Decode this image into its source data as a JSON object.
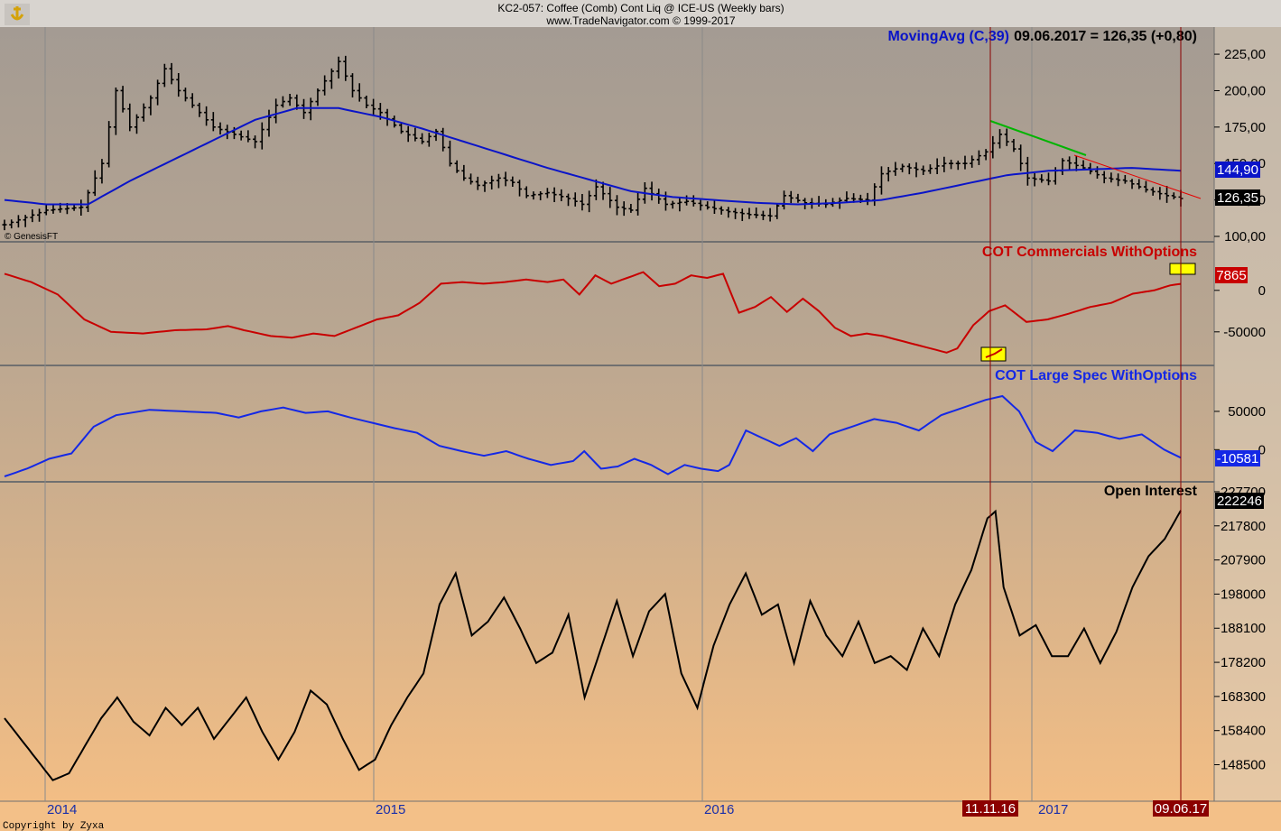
{
  "header": {
    "symbol_line": "KC2-057:  Coffee (Comb) Cont Liq @ ICE-US  (Weekly bars)",
    "source_line": "www.TradeNavigator.com © 1999-2017"
  },
  "footer": {
    "copyright": "Copyright by Zyxa",
    "watermark": "© GenesisFT"
  },
  "colors": {
    "price_bars": "#000000",
    "moving_avg": "#0a14c8",
    "commercials": "#c80000",
    "large_spec": "#1428e6",
    "open_interest": "#000000",
    "event_line": "#8b0000",
    "trend_up": "#00b400",
    "trend_down": "#e60000",
    "marker_fill": "#ffff00"
  },
  "chart_data": [
    {
      "type": "candlestick",
      "panel": "price",
      "indicator_label": "MovingAvg (C,39)",
      "readout": "09.06.2017 = 126,35 (+0,80)",
      "last_close_label": "126,35",
      "moving_avg_label": "144,90",
      "ylim": [
        100,
        230
      ],
      "yticks": [
        "100,00",
        "125,00",
        "150,00",
        "175,00",
        "200,00",
        "225,00"
      ],
      "close_anchors": [
        [
          0,
          108
        ],
        [
          6,
          118
        ],
        [
          11,
          120
        ],
        [
          14,
          150
        ],
        [
          16,
          200
        ],
        [
          18,
          175
        ],
        [
          21,
          195
        ],
        [
          23,
          215
        ],
        [
          25,
          200
        ],
        [
          28,
          185
        ],
        [
          30,
          175
        ],
        [
          33,
          170
        ],
        [
          36,
          165
        ],
        [
          39,
          190
        ],
        [
          41,
          195
        ],
        [
          43,
          185
        ],
        [
          45,
          200
        ],
        [
          48,
          220
        ],
        [
          50,
          200
        ],
        [
          52,
          190
        ],
        [
          54,
          185
        ],
        [
          57,
          172
        ],
        [
          60,
          165
        ],
        [
          62,
          172
        ],
        [
          64,
          150
        ],
        [
          66,
          140
        ],
        [
          68,
          135
        ],
        [
          71,
          140
        ],
        [
          73,
          137
        ],
        [
          75,
          128
        ],
        [
          78,
          130
        ],
        [
          81,
          126
        ],
        [
          83,
          122
        ],
        [
          85,
          134
        ],
        [
          88,
          120
        ],
        [
          90,
          118
        ],
        [
          92,
          133
        ],
        [
          95,
          122
        ],
        [
          98,
          124
        ],
        [
          101,
          120
        ],
        [
          104,
          117
        ],
        [
          107,
          115
        ],
        [
          110,
          114
        ],
        [
          112,
          128
        ],
        [
          115,
          123
        ],
        [
          118,
          122
        ],
        [
          121,
          126
        ],
        [
          124,
          125
        ],
        [
          126,
          143
        ],
        [
          129,
          148
        ],
        [
          132,
          145
        ],
        [
          135,
          150
        ],
        [
          138,
          150
        ],
        [
          141,
          158
        ],
        [
          143,
          170
        ],
        [
          145,
          160
        ],
        [
          147,
          140
        ],
        [
          150,
          138
        ],
        [
          152,
          152
        ],
        [
          155,
          147
        ],
        [
          158,
          140
        ],
        [
          161,
          138
        ],
        [
          164,
          132
        ],
        [
          167,
          128
        ],
        [
          169,
          126
        ]
      ],
      "ma_anchors": [
        [
          0,
          125
        ],
        [
          6,
          122
        ],
        [
          12,
          122
        ],
        [
          18,
          138
        ],
        [
          24,
          152
        ],
        [
          30,
          166
        ],
        [
          36,
          180
        ],
        [
          42,
          188
        ],
        [
          48,
          188
        ],
        [
          54,
          182
        ],
        [
          60,
          174
        ],
        [
          66,
          165
        ],
        [
          72,
          156
        ],
        [
          78,
          147
        ],
        [
          84,
          139
        ],
        [
          90,
          131
        ],
        [
          96,
          127
        ],
        [
          102,
          125
        ],
        [
          108,
          123
        ],
        [
          114,
          122
        ],
        [
          120,
          123
        ],
        [
          126,
          125
        ],
        [
          132,
          130
        ],
        [
          138,
          136
        ],
        [
          144,
          142
        ],
        [
          150,
          145
        ],
        [
          156,
          146
        ],
        [
          162,
          147
        ],
        [
          169,
          145
        ]
      ]
    },
    {
      "type": "line",
      "panel": "commercials",
      "series": [
        {
          "name": "COT Commercials WithOptions"
        }
      ],
      "last_value_label": "7865",
      "ylim": [
        -85000,
        40000
      ],
      "yticks": [
        "-50000",
        "0"
      ],
      "anchors": [
        [
          0,
          20000
        ],
        [
          5,
          10000
        ],
        [
          10,
          -5000
        ],
        [
          15,
          -35000
        ],
        [
          20,
          -50000
        ],
        [
          26,
          -52000
        ],
        [
          32,
          -48000
        ],
        [
          38,
          -47000
        ],
        [
          42,
          -43000
        ],
        [
          45,
          -48000
        ],
        [
          50,
          -55000
        ],
        [
          54,
          -57000
        ],
        [
          58,
          -52000
        ],
        [
          62,
          -55000
        ],
        [
          66,
          -45000
        ],
        [
          70,
          -35000
        ],
        [
          74,
          -30000
        ],
        [
          78,
          -15000
        ],
        [
          82,
          8000
        ],
        [
          86,
          10000
        ],
        [
          90,
          8000
        ],
        [
          94,
          10000
        ],
        [
          98,
          13000
        ],
        [
          102,
          10000
        ],
        [
          105,
          13000
        ],
        [
          108,
          -5000
        ],
        [
          111,
          18000
        ],
        [
          114,
          8000
        ],
        [
          117,
          15000
        ],
        [
          120,
          22000
        ],
        [
          123,
          5000
        ],
        [
          126,
          8000
        ],
        [
          129,
          18000
        ],
        [
          132,
          15000
        ],
        [
          135,
          20000
        ],
        [
          138,
          -27000
        ],
        [
          141,
          -20000
        ],
        [
          144,
          -8000
        ],
        [
          147,
          -26000
        ],
        [
          150,
          -10000
        ],
        [
          153,
          -25000
        ],
        [
          156,
          -45000
        ],
        [
          159,
          -55000
        ],
        [
          162,
          -52000
        ],
        [
          165,
          -55000
        ],
        [
          168,
          -60000
        ],
        [
          171,
          -65000
        ],
        [
          174,
          -70000
        ],
        [
          177,
          -75000
        ],
        [
          179,
          -70000
        ],
        [
          182,
          -42000
        ],
        [
          185,
          -25000
        ],
        [
          188,
          -18000
        ],
        [
          192,
          -38000
        ],
        [
          196,
          -35000
        ],
        [
          200,
          -28000
        ],
        [
          204,
          -20000
        ],
        [
          208,
          -15000
        ],
        [
          212,
          -4000
        ],
        [
          216,
          0
        ],
        [
          219,
          6000
        ],
        [
          221,
          7865
        ]
      ]
    },
    {
      "type": "line",
      "panel": "large_spec",
      "series": [
        {
          "name": "COT Large Spec WithOptions"
        }
      ],
      "last_value_label": "-10581",
      "ylim": [
        -35000,
        90000
      ],
      "yticks": [
        "0",
        "50000"
      ],
      "anchors": [
        [
          0,
          -35000
        ],
        [
          4,
          -25000
        ],
        [
          8,
          -12000
        ],
        [
          12,
          -5000
        ],
        [
          16,
          30000
        ],
        [
          20,
          45000
        ],
        [
          26,
          52000
        ],
        [
          32,
          50000
        ],
        [
          38,
          48000
        ],
        [
          42,
          42000
        ],
        [
          46,
          50000
        ],
        [
          50,
          55000
        ],
        [
          54,
          48000
        ],
        [
          58,
          50000
        ],
        [
          62,
          42000
        ],
        [
          66,
          35000
        ],
        [
          70,
          28000
        ],
        [
          74,
          22000
        ],
        [
          78,
          5000
        ],
        [
          82,
          -2000
        ],
        [
          86,
          -8000
        ],
        [
          90,
          -2000
        ],
        [
          94,
          -12000
        ],
        [
          98,
          -20000
        ],
        [
          102,
          -15000
        ],
        [
          104,
          -2000
        ],
        [
          107,
          -25000
        ],
        [
          110,
          -22000
        ],
        [
          113,
          -12000
        ],
        [
          116,
          -20000
        ],
        [
          119,
          -32000
        ],
        [
          122,
          -20000
        ],
        [
          125,
          -25000
        ],
        [
          128,
          -28000
        ],
        [
          130,
          -20000
        ],
        [
          133,
          25000
        ],
        [
          136,
          15000
        ],
        [
          139,
          5000
        ],
        [
          142,
          15000
        ],
        [
          145,
          -2000
        ],
        [
          148,
          20000
        ],
        [
          152,
          30000
        ],
        [
          156,
          40000
        ],
        [
          160,
          35000
        ],
        [
          164,
          25000
        ],
        [
          168,
          45000
        ],
        [
          172,
          55000
        ],
        [
          176,
          65000
        ],
        [
          179,
          70000
        ],
        [
          182,
          50000
        ],
        [
          185,
          10000
        ],
        [
          188,
          -2000
        ],
        [
          192,
          25000
        ],
        [
          196,
          22000
        ],
        [
          200,
          14000
        ],
        [
          204,
          20000
        ],
        [
          208,
          0
        ],
        [
          211,
          -10581
        ]
      ]
    },
    {
      "type": "line",
      "panel": "open_interest",
      "series": [
        {
          "name": "Open Interest"
        }
      ],
      "last_value_label": "222246",
      "ylim": [
        140000,
        229000
      ],
      "yticks": [
        "148500",
        "158400",
        "168300",
        "178200",
        "188100",
        "198000",
        "207900",
        "217800",
        "227700"
      ],
      "anchors": [
        [
          0,
          162000
        ],
        [
          4,
          156000
        ],
        [
          8,
          150000
        ],
        [
          12,
          144000
        ],
        [
          16,
          146000
        ],
        [
          20,
          154000
        ],
        [
          24,
          162000
        ],
        [
          28,
          168000
        ],
        [
          32,
          161000
        ],
        [
          36,
          157000
        ],
        [
          40,
          165000
        ],
        [
          44,
          160000
        ],
        [
          48,
          165000
        ],
        [
          52,
          156000
        ],
        [
          56,
          162000
        ],
        [
          60,
          168000
        ],
        [
          64,
          158000
        ],
        [
          68,
          150000
        ],
        [
          72,
          158000
        ],
        [
          76,
          170000
        ],
        [
          80,
          166000
        ],
        [
          84,
          156000
        ],
        [
          88,
          147000
        ],
        [
          92,
          150000
        ],
        [
          96,
          160000
        ],
        [
          100,
          168000
        ],
        [
          104,
          175000
        ],
        [
          108,
          195000
        ],
        [
          112,
          204000
        ],
        [
          116,
          186000
        ],
        [
          120,
          190000
        ],
        [
          124,
          197000
        ],
        [
          128,
          188000
        ],
        [
          132,
          178000
        ],
        [
          136,
          181000
        ],
        [
          140,
          192000
        ],
        [
          144,
          168000
        ],
        [
          148,
          182000
        ],
        [
          152,
          196000
        ],
        [
          156,
          180000
        ],
        [
          160,
          193000
        ],
        [
          164,
          198000
        ],
        [
          168,
          175000
        ],
        [
          172,
          165000
        ],
        [
          176,
          183000
        ],
        [
          180,
          195000
        ],
        [
          184,
          204000
        ],
        [
          188,
          192000
        ],
        [
          192,
          195000
        ],
        [
          196,
          178000
        ],
        [
          200,
          196000
        ],
        [
          204,
          186000
        ],
        [
          208,
          180000
        ],
        [
          212,
          190000
        ],
        [
          216,
          178000
        ],
        [
          220,
          180000
        ],
        [
          224,
          176000
        ],
        [
          228,
          188000
        ],
        [
          232,
          180000
        ],
        [
          236,
          195000
        ],
        [
          240,
          205000
        ],
        [
          244,
          220000
        ],
        [
          246,
          222000
        ],
        [
          248,
          200000
        ],
        [
          252,
          186000
        ],
        [
          256,
          189000
        ],
        [
          260,
          180000
        ],
        [
          264,
          180000
        ],
        [
          268,
          188000
        ],
        [
          272,
          178000
        ],
        [
          276,
          187000
        ],
        [
          280,
          200000
        ],
        [
          284,
          209000
        ],
        [
          288,
          214000
        ],
        [
          292,
          222246
        ]
      ]
    }
  ],
  "x_axis": {
    "ticks": [
      {
        "label": "2014",
        "week": 0
      },
      {
        "label": "2015",
        "week": 52
      },
      {
        "label": "2016",
        "week": 104
      },
      {
        "label": "2017",
        "week": 156
      }
    ],
    "event_labels": [
      {
        "label": "11.11.16",
        "week": 149
      },
      {
        "label": "09.06.17",
        "week": 179
      }
    ]
  }
}
